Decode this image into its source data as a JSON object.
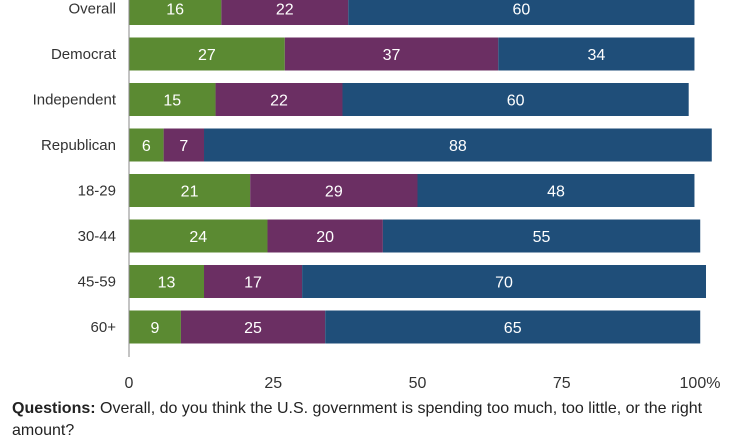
{
  "chart_data": {
    "type": "bar",
    "orientation": "horizontal",
    "stacked": true,
    "categories": [
      "Overall",
      "Democrat",
      "Independent",
      "Republican",
      "18-29",
      "30-44",
      "45-59",
      "60+"
    ],
    "series": [
      {
        "values": [
          16,
          27,
          15,
          6,
          21,
          24,
          13,
          9
        ],
        "color": "#5b8a32"
      },
      {
        "values": [
          22,
          37,
          22,
          7,
          29,
          20,
          17,
          25
        ],
        "color": "#6b2f63"
      },
      {
        "values": [
          60,
          34,
          60,
          88,
          48,
          55,
          70,
          65
        ],
        "color": "#1f4e79"
      }
    ],
    "xlim": [
      0,
      100
    ],
    "xticks": [
      "0",
      "25",
      "50",
      "75",
      "100%"
    ],
    "grid": false
  },
  "note": {
    "label": "Questions:",
    "text": " Overall, do you think the U.S. government is spending too much, too little, or the right amount?"
  }
}
